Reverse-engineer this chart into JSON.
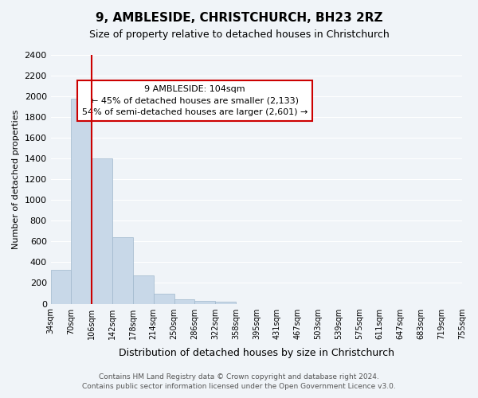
{
  "title": "9, AMBLESIDE, CHRISTCHURCH, BH23 2RZ",
  "subtitle": "Size of property relative to detached houses in Christchurch",
  "xlabel": "Distribution of detached houses by size in Christchurch",
  "ylabel": "Number of detached properties",
  "bin_labels": [
    "34sqm",
    "70sqm",
    "106sqm",
    "142sqm",
    "178sqm",
    "214sqm",
    "250sqm",
    "286sqm",
    "322sqm",
    "358sqm",
    "395sqm",
    "431sqm",
    "467sqm",
    "503sqm",
    "539sqm",
    "575sqm",
    "611sqm",
    "647sqm",
    "683sqm",
    "719sqm",
    "755sqm"
  ],
  "bar_heights": [
    325,
    1975,
    1400,
    645,
    275,
    100,
    45,
    30,
    20,
    0,
    0,
    0,
    0,
    0,
    0,
    0,
    0,
    0,
    0,
    0
  ],
  "bar_color": "#c8d8e8",
  "bar_edge_color": "#a0b8cc",
  "vline_x": 2,
  "vline_color": "#cc0000",
  "ylim": [
    0,
    2400
  ],
  "yticks": [
    0,
    200,
    400,
    600,
    800,
    1000,
    1200,
    1400,
    1600,
    1800,
    2000,
    2200,
    2400
  ],
  "annotation_title": "9 AMBLESIDE: 104sqm",
  "annotation_line1": "← 45% of detached houses are smaller (2,133)",
  "annotation_line2": "54% of semi-detached houses are larger (2,601) →",
  "annotation_box_color": "#ffffff",
  "annotation_box_edge": "#cc0000",
  "footer_line1": "Contains HM Land Registry data © Crown copyright and database right 2024.",
  "footer_line2": "Contains public sector information licensed under the Open Government Licence v3.0.",
  "background_color": "#f0f4f8",
  "grid_color": "#ffffff"
}
